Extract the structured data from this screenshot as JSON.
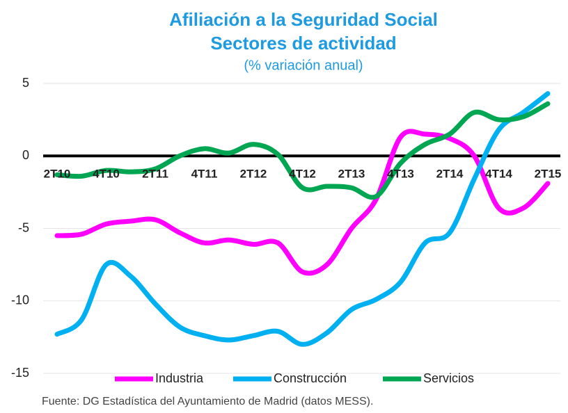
{
  "chart_data": {
    "type": "line",
    "title": [
      "Afiliación a la Seguridad Social",
      "Sectores de actividad"
    ],
    "subtitle": "(% variación anual)",
    "source": "Fuente: DG Estadística del Ayuntamiento de Madrid (datos MESS).",
    "categories": [
      "2T10",
      null,
      "4T10",
      null,
      "2T11",
      null,
      "4T11",
      null,
      "2T12",
      null,
      "4T12",
      null,
      "2T13",
      null,
      "4T13",
      null,
      "2T14",
      null,
      "4T14",
      null,
      "2T15"
    ],
    "ylim": [
      -15,
      5
    ],
    "yticks": [
      -15,
      -10,
      -5,
      0,
      5
    ],
    "grid": true,
    "legend": "bottom",
    "series": [
      {
        "name": "Industria",
        "color": "#ff00ff",
        "values": [
          -5.5,
          -5.4,
          -4.7,
          -4.5,
          -4.4,
          -5.3,
          -6,
          -5.8,
          -6.1,
          -6,
          -8,
          -7.5,
          -5,
          -3,
          1.3,
          1.5,
          1.2,
          0,
          -3.6,
          -3.6,
          -1.9
        ]
      },
      {
        "name": "Construcción",
        "color": "#00b0f0",
        "values": [
          -12.3,
          -11.3,
          -7.5,
          -8.3,
          -10.2,
          -11.8,
          -12.4,
          -12.7,
          -12.4,
          -12.1,
          -13,
          -12.2,
          -10.6,
          -9.9,
          -8.7,
          -6,
          -5.3,
          -1.6,
          1.8,
          3,
          4.3
        ]
      },
      {
        "name": "Servicios",
        "color": "#00a651",
        "values": [
          -1.3,
          -1.4,
          -1,
          -1.1,
          -0.9,
          0,
          0.5,
          0.2,
          0.8,
          0.1,
          -2.2,
          -2.1,
          -2.2,
          -2.8,
          -0.5,
          0.8,
          1.5,
          3,
          2.5,
          2.7,
          3.6
        ]
      }
    ]
  }
}
